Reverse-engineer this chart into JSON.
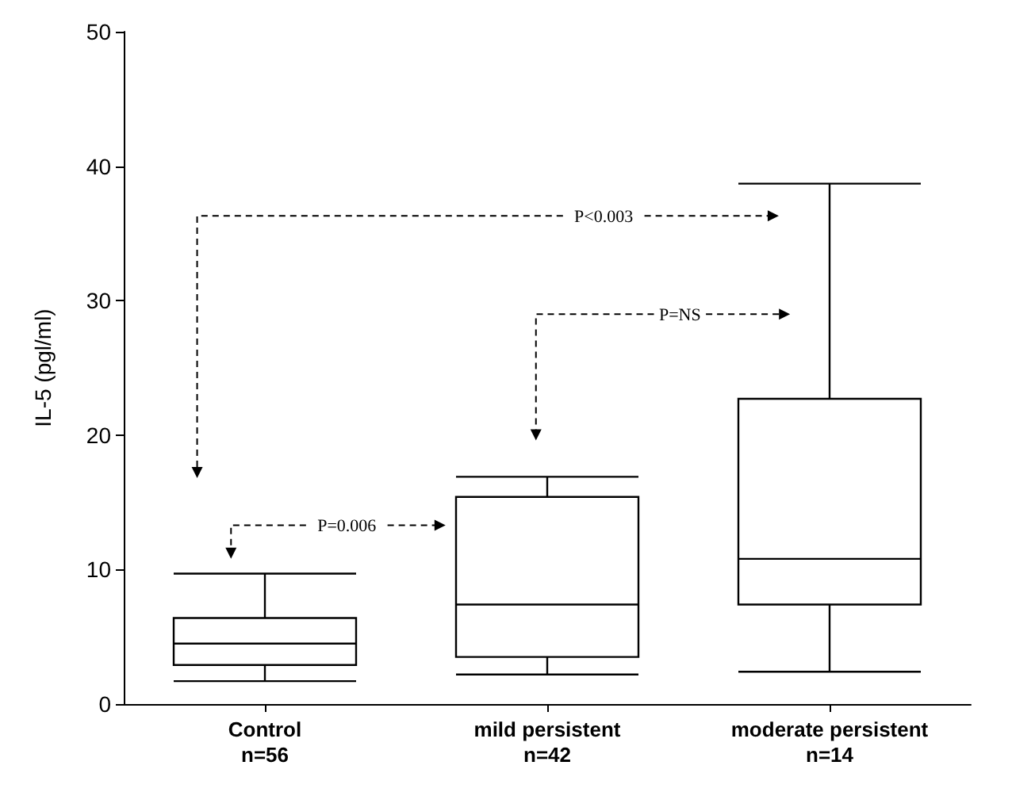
{
  "chart_data": {
    "type": "box",
    "ylabel": "IL-5 (pgl/ml)",
    "categories": [
      "Control\nn=56",
      "mild persistent\nn=42",
      "moderate persistent\nn=14"
    ],
    "boxes": [
      {
        "low": 1.7,
        "q1": 2.9,
        "median": 4.5,
        "q3": 6.4,
        "high": 9.7
      },
      {
        "low": 2.2,
        "q1": 3.5,
        "median": 7.4,
        "q3": 15.4,
        "high": 16.9
      },
      {
        "low": 2.4,
        "q1": 7.4,
        "median": 10.8,
        "q3": 22.7,
        "high": 38.7
      }
    ],
    "color": "#000000",
    "ylim": [
      0,
      50
    ],
    "yticks": [
      0,
      10,
      20,
      30,
      40,
      50
    ],
    "grid": false,
    "annotations": [
      "P<0.003",
      "P=NS",
      "P=0.006"
    ]
  }
}
